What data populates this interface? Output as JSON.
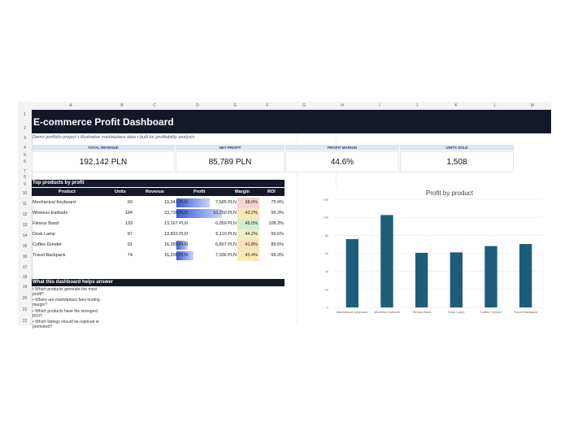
{
  "columns": [
    "A",
    "B",
    "C",
    "D",
    "E",
    "F",
    "G",
    "H",
    "I",
    "J",
    "K",
    "L",
    "M"
  ],
  "rows": [
    "1",
    "2",
    "3",
    "4",
    "5",
    "6",
    "7",
    "8",
    "9",
    "10",
    "11",
    "12",
    "13",
    "14",
    "15",
    "16",
    "17",
    "18",
    "19",
    "20",
    "21",
    "22"
  ],
  "title": "E-commerce Profit Dashboard",
  "subtitle": "Demo portfolio project • illustrative marketplace data • built for profitability analysis",
  "kpis": [
    {
      "label": "TOTAL REVENUE",
      "value": "192,142 PLN"
    },
    {
      "label": "NET PROFIT",
      "value": "85,789 PLN"
    },
    {
      "label": "PROFIT MARGIN",
      "value": "44.6%"
    },
    {
      "label": "UNITS SOLD",
      "value": "1,508"
    }
  ],
  "top_products": {
    "heading": "Top products by profit",
    "headers": [
      "Product",
      "Units",
      "Revenue",
      "Profit",
      "Margin",
      "ROI"
    ],
    "rows": [
      {
        "product": "Mechanical Keyboard",
        "units": "69",
        "revenue": "19,941 PLN",
        "profit": "7,585 PLN",
        "margin": "38.0%",
        "roi": "75.4%",
        "profit_bar": 0.74,
        "margin_color": "#f8d2d2"
      },
      {
        "product": "Wireless Earbuds",
        "units": "184",
        "revenue": "23,736 PLN",
        "profit": "10,250 PLN",
        "margin": "43.2%",
        "roi": "95.3%",
        "profit_bar": 1.0,
        "margin_color": "#fbe7b8"
      },
      {
        "product": "Fitness Band",
        "units": "133",
        "revenue": "13,167 PLN",
        "profit": "6,059 PLN",
        "margin": "46.0%",
        "roi": "108.3%",
        "profit_bar": 0.0,
        "margin_color": "#cfeecf"
      },
      {
        "product": "Desk Lamp",
        "units": "87",
        "revenue": "13,833 PLN",
        "profit": "6,110 PLN",
        "margin": "44.2%",
        "roi": "99.6%",
        "profit_bar": 0.0,
        "margin_color": "#eef0c2"
      },
      {
        "product": "Coffee Grinder",
        "units": "91",
        "revenue": "16,289 PLN",
        "profit": "6,807 PLN",
        "margin": "41.8%",
        "roi": "89.5%",
        "profit_bar": 0.25,
        "margin_color": "#fce0be"
      },
      {
        "product": "Travel Backpack",
        "units": "74",
        "revenue": "16,206 PLN",
        "profit": "7,036 PLN",
        "margin": "43.4%",
        "roi": "96.3%",
        "profit_bar": 0.38,
        "margin_color": "#fbe9b6"
      }
    ]
  },
  "helps": {
    "heading": "What this dashboard helps answer",
    "items": [
      "• Which products generate the most profit?",
      "• Where are marketplace fees hurting margin?",
      "• Which products have the strongest ROI?",
      "• Which listings should be repriced or promoted?"
    ]
  },
  "colors": {
    "dark": "#141827",
    "bar": "#1f5c7a",
    "kpi_header": "#dbe6f6"
  },
  "chart_data": {
    "type": "bar",
    "title": "Profit by product",
    "categories": [
      "Mechanical Keyboard",
      "Wireless Earbuds",
      "Fitness Band",
      "Desk Lamp",
      "Coffee Grinder",
      "Travel Backpack"
    ],
    "values": [
      7585,
      10250,
      6059,
      6110,
      6807,
      7036
    ],
    "yticks": [
      "0",
      "2k",
      "4k",
      "6k",
      "8k",
      "10k",
      "12k"
    ],
    "ylim": [
      0,
      12000
    ],
    "grid": true,
    "legend": "none"
  }
}
